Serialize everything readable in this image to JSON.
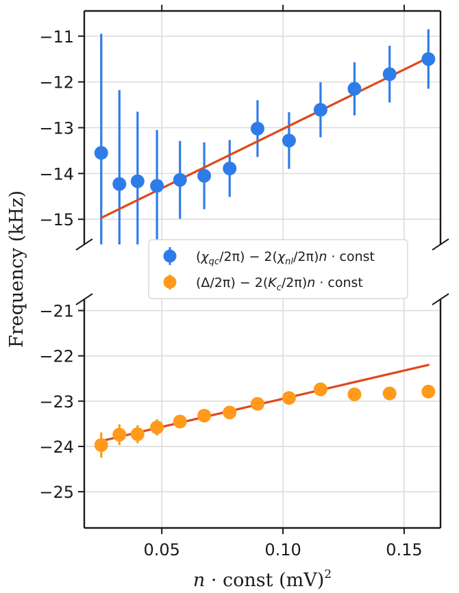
{
  "chart_data": {
    "type": "scatter",
    "broken_axis": true,
    "ylabel": "Frequency (kHz)",
    "xlabel_parts": {
      "var": "n",
      "rest": " · const (mV)",
      "sup": "2"
    },
    "xlim": [
      0.018,
      0.165
    ],
    "x_ticks": [
      0.05,
      0.1,
      0.15
    ],
    "x_tick_labels": [
      "0.05",
      "0.10",
      "0.15"
    ],
    "grid": true,
    "panels": [
      {
        "name": "upper",
        "ylim": [
          -15.55,
          -10.45
        ],
        "y_ticks": [
          -11,
          -12,
          -13,
          -14,
          -15
        ],
        "y_tick_labels": [
          "−11",
          "−12",
          "−13",
          "−14",
          "−15"
        ]
      },
      {
        "name": "lower",
        "ylim": [
          -25.8,
          -20.75
        ],
        "y_ticks": [
          -21,
          -22,
          -23,
          -24,
          -25
        ],
        "y_tick_labels": [
          "−21",
          "−22",
          "−23",
          "−24",
          "−25"
        ]
      }
    ],
    "series": [
      {
        "name": "chi",
        "panel": "upper",
        "color": "#2e7ce8",
        "legend": {
          "pre": "(",
          "chi": "χ",
          "sub1": "qc",
          "mid": "/2π) − 2(",
          "chi2": "χ",
          "sub2": "nl",
          "mid2": "/2π)",
          "n": "n",
          "post": " · const"
        },
        "x": [
          0.025,
          0.0325,
          0.04,
          0.048,
          0.0575,
          0.0675,
          0.078,
          0.0895,
          0.1025,
          0.1155,
          0.1295,
          0.144,
          0.16
        ],
        "y": [
          -13.55,
          -14.23,
          -14.17,
          -14.27,
          -14.14,
          -14.05,
          -13.89,
          -13.02,
          -13.28,
          -12.61,
          -12.15,
          -11.83,
          -11.5
        ],
        "err": [
          2.6,
          2.05,
          1.52,
          1.22,
          0.85,
          0.73,
          0.62,
          0.62,
          0.62,
          0.6,
          0.58,
          0.62,
          0.65
        ],
        "fit": {
          "x": [
            0.025,
            0.16
          ],
          "y": [
            -14.97,
            -11.47
          ]
        }
      },
      {
        "name": "delta",
        "panel": "lower",
        "color": "#ff9a1a",
        "legend": {
          "pre": "(Δ/2π) − 2(",
          "k": "K",
          "sub": "c",
          "mid": "/2π)",
          "n": "n",
          "post": " · const"
        },
        "x": [
          0.025,
          0.0325,
          0.04,
          0.048,
          0.0575,
          0.0675,
          0.078,
          0.0895,
          0.1025,
          0.1155,
          0.1295,
          0.144,
          0.16
        ],
        "y": [
          -23.97,
          -23.74,
          -23.73,
          -23.58,
          -23.45,
          -23.32,
          -23.25,
          -23.06,
          -22.93,
          -22.74,
          -22.85,
          -22.83,
          -22.79
        ],
        "err": [
          0.28,
          0.23,
          0.2,
          0.18,
          0.12,
          0.1,
          0.08,
          0.07,
          0.07,
          0.06,
          0.06,
          0.06,
          0.06
        ],
        "fit": {
          "x": [
            0.025,
            0.16
          ],
          "y": [
            -23.88,
            -22.2
          ]
        }
      }
    ],
    "fit_color": "#e0481a"
  }
}
